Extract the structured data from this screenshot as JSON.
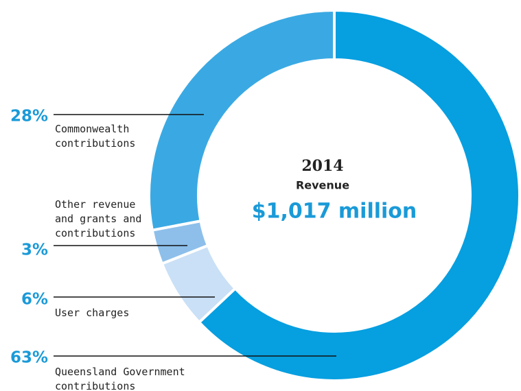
{
  "chart_data": {
    "type": "donut",
    "year": "2014",
    "subtitle": "Revenue",
    "total": "$1,017 million",
    "categories": [
      "Queensland Government contributions",
      "User charges",
      "Other revenue and grants and contributions",
      "Commonwealth contributions"
    ],
    "values": [
      63,
      6,
      3,
      28
    ],
    "value_labels": [
      "63%",
      "6%",
      "3%",
      "28%"
    ],
    "colors": [
      "#069fe0",
      "#c9e0f6",
      "#8dbfea",
      "#3aa9e3"
    ]
  }
}
